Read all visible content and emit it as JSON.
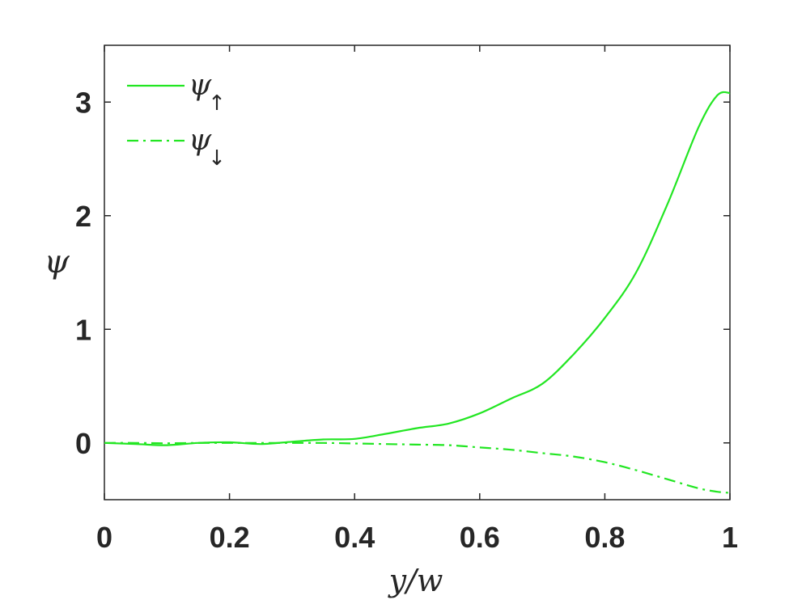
{
  "chart_data": {
    "type": "line",
    "title": "",
    "xlabel": "y/w",
    "ylabel": "ψ",
    "xlim": [
      0,
      1
    ],
    "ylim": [
      -0.5,
      3.5
    ],
    "x_ticks": [
      0,
      0.2,
      0.4,
      0.6,
      0.8,
      1
    ],
    "x_tick_labels": [
      "0",
      "0.2",
      "0.4",
      "0.6",
      "0.8",
      "1"
    ],
    "y_ticks": [
      0,
      1,
      2,
      3
    ],
    "y_tick_labels": [
      "0",
      "1",
      "2",
      "3"
    ],
    "grid": false,
    "legend_position": "top-left",
    "series": [
      {
        "name": "ψ↑",
        "legend_symbol": "ψ",
        "legend_subscript": "↑",
        "style": "solid",
        "color": "#22e622",
        "x": [
          0,
          0.05,
          0.1,
          0.15,
          0.2,
          0.25,
          0.3,
          0.35,
          0.4,
          0.45,
          0.5,
          0.55,
          0.6,
          0.65,
          0.7,
          0.75,
          0.8,
          0.85,
          0.9,
          0.95,
          0.98,
          1
        ],
        "y": [
          0,
          -0.01,
          -0.02,
          0,
          0.005,
          -0.01,
          0.01,
          0.03,
          0.035,
          0.08,
          0.13,
          0.17,
          0.26,
          0.39,
          0.52,
          0.78,
          1.1,
          1.5,
          2.1,
          2.78,
          3.06,
          3.08
        ]
      },
      {
        "name": "ψ↓",
        "legend_symbol": "ψ",
        "legend_subscript": "↓",
        "style": "dashdot",
        "color": "#22e622",
        "x": [
          0,
          0.05,
          0.1,
          0.15,
          0.2,
          0.25,
          0.3,
          0.35,
          0.4,
          0.45,
          0.5,
          0.55,
          0.6,
          0.65,
          0.7,
          0.75,
          0.8,
          0.85,
          0.9,
          0.95,
          0.98,
          1
        ],
        "y": [
          0,
          0,
          -0.003,
          0,
          0,
          0,
          0,
          0,
          -0.005,
          -0.01,
          -0.015,
          -0.02,
          -0.04,
          -0.06,
          -0.09,
          -0.12,
          -0.17,
          -0.24,
          -0.32,
          -0.4,
          -0.43,
          -0.44
        ]
      }
    ]
  }
}
